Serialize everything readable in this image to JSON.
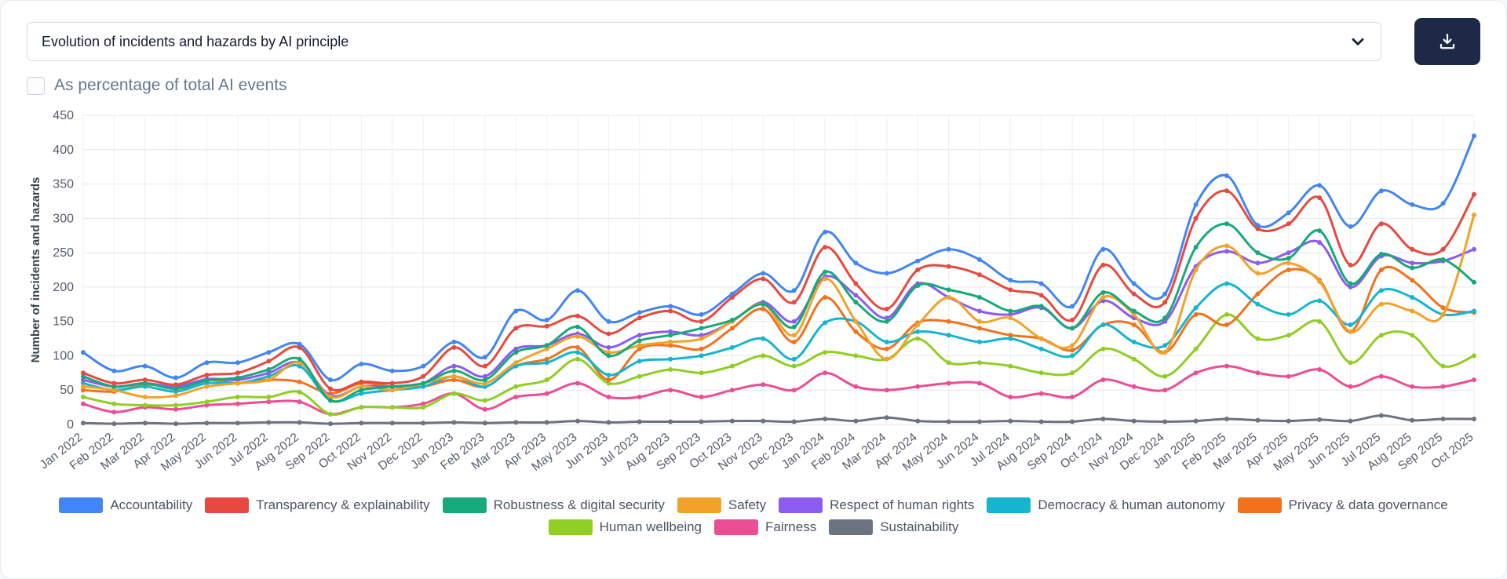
{
  "controls": {
    "chart_selector": {
      "value": "Evolution of incidents and hazards by AI principle"
    },
    "download_button": {
      "icon": "download-icon"
    },
    "percentage_checkbox": {
      "label": "As percentage of total AI events",
      "checked": false
    }
  },
  "chart_data": {
    "type": "line",
    "title": "Evolution of incidents and hazards by AI principle",
    "xlabel": "",
    "ylabel": "Number of incidents and hazards",
    "ylim": [
      0,
      450
    ],
    "ytick_step": 50,
    "grid": true,
    "legend_position": "bottom",
    "legend_rows": [
      7,
      3
    ],
    "x": [
      "Jan 2022",
      "Feb 2022",
      "Mar 2022",
      "Apr 2022",
      "May 2022",
      "Jun 2022",
      "Jul 2022",
      "Aug 2022",
      "Sep 2022",
      "Oct 2022",
      "Nov 2022",
      "Dec 2022",
      "Jan 2023",
      "Feb 2023",
      "Mar 2023",
      "Apr 2023",
      "May 2023",
      "Jun 2023",
      "Jul 2023",
      "Aug 2023",
      "Sep 2023",
      "Oct 2023",
      "Nov 2023",
      "Dec 2023",
      "Jan 2024",
      "Feb 2024",
      "Mar 2024",
      "Apr 2024",
      "May 2024",
      "Jun 2024",
      "Jul 2024",
      "Aug 2024",
      "Sep 2024",
      "Oct 2024",
      "Nov 2024",
      "Dec 2024",
      "Jan 2025",
      "Feb 2025",
      "Mar 2025",
      "Apr 2025",
      "May 2025",
      "Jun 2025",
      "Jul 2025",
      "Aug 2025",
      "Sep 2025",
      "Oct 2025"
    ],
    "series": [
      {
        "name": "Accountability",
        "color": "#4285f4",
        "values": [
          105,
          78,
          85,
          68,
          90,
          90,
          105,
          117,
          65,
          88,
          78,
          85,
          120,
          98,
          165,
          152,
          195,
          150,
          163,
          172,
          160,
          190,
          220,
          195,
          280,
          235,
          220,
          238,
          255,
          240,
          210,
          205,
          172,
          255,
          205,
          190,
          320,
          362,
          290,
          308,
          348,
          288,
          340,
          320,
          322,
          420
        ]
      },
      {
        "name": "Transparency & explainability",
        "color": "#e6493f",
        "values": [
          75,
          60,
          65,
          58,
          72,
          75,
          92,
          112,
          52,
          62,
          60,
          70,
          112,
          85,
          140,
          143,
          158,
          132,
          155,
          165,
          150,
          185,
          212,
          178,
          258,
          205,
          168,
          225,
          230,
          218,
          196,
          188,
          152,
          232,
          190,
          178,
          300,
          340,
          285,
          292,
          330,
          232,
          292,
          255,
          255,
          335
        ]
      },
      {
        "name": "Robustness & digital security",
        "color": "#17a97b",
        "values": [
          70,
          55,
          60,
          52,
          64,
          68,
          80,
          95,
          35,
          50,
          55,
          60,
          78,
          65,
          105,
          115,
          142,
          100,
          122,
          130,
          140,
          152,
          175,
          142,
          222,
          178,
          150,
          202,
          196,
          185,
          165,
          172,
          140,
          192,
          165,
          155,
          258,
          292,
          250,
          242,
          282,
          205,
          248,
          228,
          240,
          207
        ]
      },
      {
        "name": "Safety",
        "color": "#f2a229",
        "values": [
          55,
          50,
          40,
          42,
          55,
          60,
          65,
          90,
          40,
          55,
          50,
          60,
          70,
          60,
          90,
          110,
          128,
          105,
          115,
          120,
          125,
          150,
          175,
          130,
          212,
          150,
          95,
          145,
          185,
          150,
          155,
          125,
          115,
          185,
          160,
          105,
          225,
          260,
          220,
          235,
          208,
          135,
          175,
          165,
          160,
          305
        ]
      },
      {
        "name": "Respect of human rights",
        "color": "#8c5cf0",
        "values": [
          65,
          55,
          60,
          55,
          66,
          65,
          75,
          90,
          42,
          55,
          55,
          60,
          85,
          70,
          110,
          115,
          132,
          112,
          130,
          135,
          130,
          150,
          178,
          150,
          215,
          188,
          155,
          205,
          185,
          165,
          160,
          170,
          140,
          180,
          155,
          150,
          230,
          252,
          235,
          250,
          265,
          200,
          245,
          235,
          238,
          255
        ]
      },
      {
        "name": "Democracy & human autonomy",
        "color": "#15b5cf",
        "values": [
          60,
          50,
          55,
          48,
          60,
          60,
          70,
          85,
          35,
          45,
          50,
          55,
          70,
          55,
          85,
          90,
          105,
          72,
          92,
          95,
          100,
          112,
          125,
          95,
          148,
          150,
          120,
          135,
          130,
          120,
          125,
          110,
          100,
          145,
          120,
          115,
          170,
          205,
          175,
          160,
          180,
          145,
          195,
          185,
          160,
          165
        ]
      },
      {
        "name": "Privacy & data governance",
        "color": "#f2711c",
        "values": [
          50,
          48,
          58,
          55,
          65,
          60,
          65,
          62,
          45,
          60,
          55,
          55,
          65,
          55,
          85,
          95,
          112,
          65,
          110,
          115,
          110,
          140,
          168,
          120,
          185,
          135,
          110,
          148,
          150,
          140,
          130,
          125,
          108,
          145,
          145,
          105,
          160,
          145,
          190,
          225,
          210,
          135,
          225,
          210,
          170,
          163
        ]
      },
      {
        "name": "Human wellbeing",
        "color": "#8fce23",
        "values": [
          40,
          30,
          28,
          28,
          33,
          40,
          40,
          47,
          15,
          25,
          25,
          25,
          45,
          35,
          55,
          65,
          95,
          60,
          70,
          80,
          75,
          85,
          100,
          85,
          105,
          100,
          95,
          125,
          90,
          90,
          85,
          75,
          75,
          110,
          95,
          70,
          110,
          160,
          125,
          130,
          150,
          90,
          130,
          130,
          85,
          100
        ]
      },
      {
        "name": "Fairness",
        "color": "#ec4d94",
        "values": [
          30,
          18,
          25,
          22,
          28,
          30,
          33,
          33,
          15,
          25,
          25,
          30,
          45,
          22,
          40,
          45,
          60,
          40,
          40,
          50,
          40,
          50,
          58,
          50,
          75,
          55,
          50,
          55,
          60,
          60,
          40,
          45,
          40,
          65,
          55,
          50,
          75,
          85,
          75,
          70,
          80,
          55,
          70,
          55,
          55,
          65
        ]
      },
      {
        "name": "Sustainability",
        "color": "#6b7280",
        "values": [
          2,
          1,
          2,
          1,
          2,
          2,
          3,
          3,
          1,
          2,
          2,
          2,
          3,
          2,
          3,
          3,
          5,
          3,
          4,
          4,
          4,
          5,
          5,
          4,
          8,
          5,
          10,
          5,
          4,
          4,
          5,
          4,
          4,
          8,
          5,
          4,
          5,
          8,
          6,
          5,
          7,
          5,
          13,
          6,
          8,
          8
        ]
      }
    ]
  }
}
